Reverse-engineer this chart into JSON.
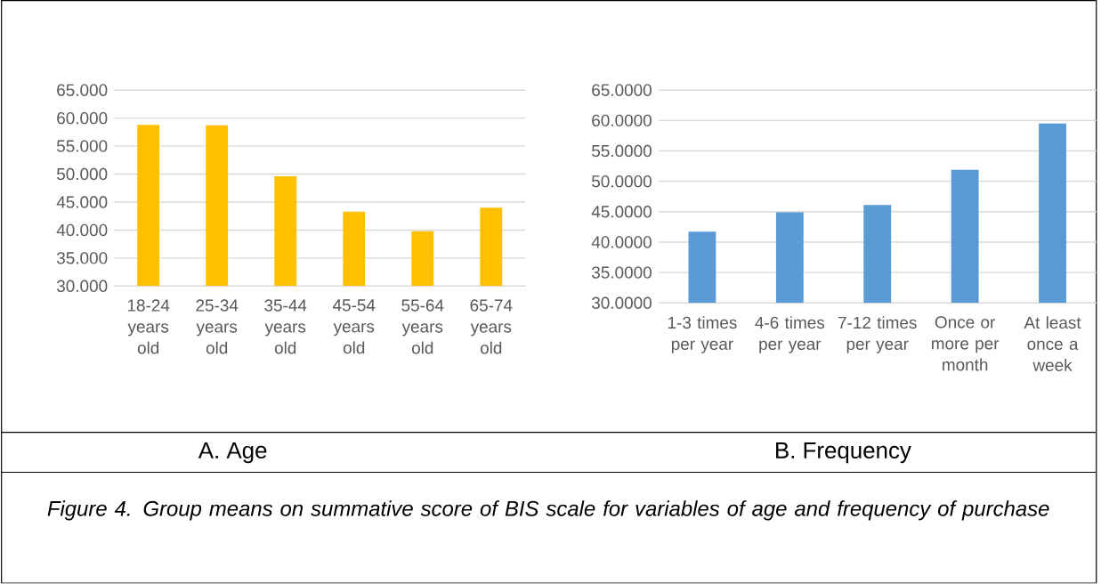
{
  "chart_data": [
    {
      "type": "bar",
      "title": "A.   Age",
      "categories": [
        "18-24 years old",
        "25-34 years old",
        "35-44 years old",
        "45-54 years old",
        "55-64 years old",
        "65-74 years old"
      ],
      "values": [
        58.8,
        58.7,
        49.6,
        43.3,
        39.8,
        44.0
      ],
      "color": "#ffc000",
      "ylim": [
        30,
        65
      ],
      "yticks": [
        {
          "value": 30,
          "label": "30.000"
        },
        {
          "value": 35,
          "label": "35.000"
        },
        {
          "value": 40,
          "label": "40.000"
        },
        {
          "value": 45,
          "label": "45.000"
        },
        {
          "value": 50,
          "label": "50.000"
        },
        {
          "value": 55,
          "label": "55.000"
        },
        {
          "value": 60,
          "label": "60.000"
        },
        {
          "value": 65,
          "label": "65.000"
        }
      ],
      "grid": "y",
      "annotations": [
        "Figure 4. Group means on summative score of BIS scale for variables of age and frequency of purchase"
      ]
    },
    {
      "type": "bar",
      "title": "B.   Frequency",
      "categories": [
        "1-3 times per year",
        "4-6 times per year",
        "7-12 times per year",
        "Once or more per month",
        "At least once a week"
      ],
      "values": [
        41.7,
        44.9,
        46.1,
        51.9,
        59.5
      ],
      "color": "#5b9bd5",
      "ylim": [
        30,
        65
      ],
      "yticks": [
        {
          "value": 30,
          "label": "30.0000"
        },
        {
          "value": 35,
          "label": "35.0000"
        },
        {
          "value": 40,
          "label": "40.0000"
        },
        {
          "value": 45,
          "label": "45.0000"
        },
        {
          "value": 50,
          "label": "50.0000"
        },
        {
          "value": 55,
          "label": "55.0000"
        },
        {
          "value": 60,
          "label": "60.0000"
        },
        {
          "value": 65,
          "label": "65.0000"
        }
      ],
      "grid": "y"
    }
  ]
}
